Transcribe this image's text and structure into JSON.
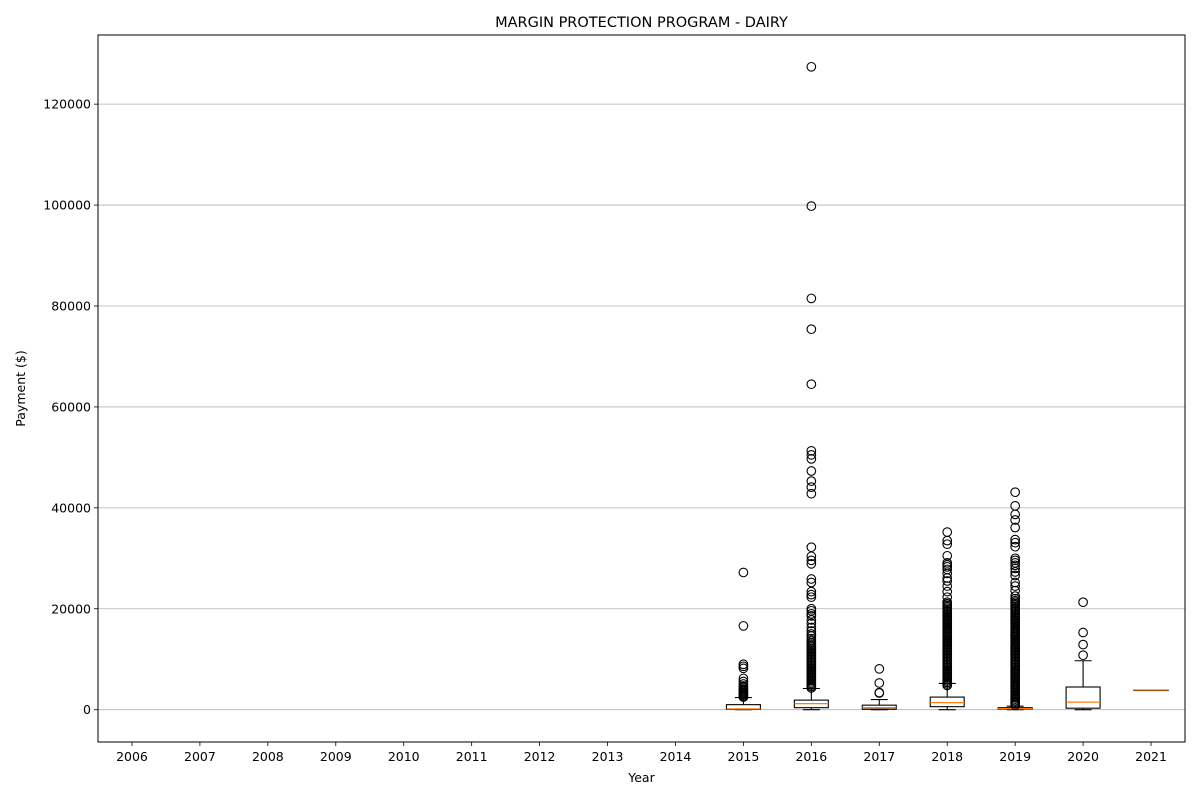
{
  "chart_data": {
    "type": "box",
    "title": "MARGIN PROTECTION PROGRAM - DAIRY",
    "xlabel": "Year",
    "ylabel": "Payment ($)",
    "categories": [
      "2006",
      "2007",
      "2008",
      "2009",
      "2010",
      "2011",
      "2012",
      "2013",
      "2014",
      "2015",
      "2016",
      "2017",
      "2018",
      "2019",
      "2020",
      "2021"
    ],
    "ylim": [
      -6400,
      133700
    ],
    "yticks": [
      0,
      20000,
      40000,
      60000,
      80000,
      100000,
      120000
    ],
    "ytick_labels": [
      "0",
      "20000",
      "40000",
      "60000",
      "80000",
      "100000",
      "120000"
    ],
    "grid": "y",
    "colors": {
      "median": "#ff7f0e",
      "box": "#000000",
      "grid": "#b0b0b0"
    },
    "boxes": [
      {
        "category": "2015",
        "whisker_low": 0,
        "q1": 50,
        "median": 150,
        "q3": 1000,
        "whisker_high": 2400,
        "outliers": [
          2500,
          2700,
          2900,
          3100,
          3300,
          3500,
          3700,
          3900,
          4100,
          4400,
          4700,
          5100,
          5600,
          6200,
          8200,
          8600,
          9000,
          16600,
          27200
        ]
      },
      {
        "category": "2016",
        "whisker_low": 0,
        "q1": 400,
        "median": 1200,
        "q3": 1900,
        "whisker_high": 4200,
        "outliers": [
          4300,
          4600,
          4900,
          5200,
          5500,
          5800,
          6100,
          6400,
          6700,
          7000,
          7300,
          7600,
          7900,
          8200,
          8500,
          8800,
          9100,
          9400,
          9700,
          10000,
          10300,
          10600,
          10900,
          11200,
          11500,
          11800,
          12100,
          12400,
          12700,
          13000,
          13300,
          13700,
          14100,
          14600,
          15000,
          15600,
          16300,
          17100,
          17800,
          18600,
          19000,
          19600,
          20000,
          22300,
          22800,
          23400,
          25200,
          25900,
          28900,
          29600,
          30400,
          32200,
          42800,
          44100,
          45300,
          47300,
          49700,
          50500,
          51300,
          64500,
          75400,
          81500,
          99800,
          127400
        ]
      },
      {
        "category": "2017",
        "whisker_low": 0,
        "q1": 100,
        "median": 400,
        "q3": 900,
        "whisker_high": 2000,
        "outliers": [
          3300,
          3400,
          5300,
          8100
        ]
      },
      {
        "category": "2018",
        "whisker_low": 0,
        "q1": 600,
        "median": 1400,
        "q3": 2500,
        "whisker_high": 5200,
        "outliers": [
          4800,
          5100,
          5400,
          5700,
          6000,
          6300,
          6600,
          6900,
          7200,
          7500,
          7800,
          8100,
          8400,
          8700,
          9000,
          9300,
          9600,
          9900,
          10200,
          10500,
          10800,
          11100,
          11400,
          11700,
          12000,
          12300,
          12600,
          12900,
          13200,
          13500,
          13800,
          14100,
          14400,
          14700,
          15000,
          15300,
          15600,
          15900,
          16200,
          16500,
          16800,
          17100,
          17400,
          17700,
          18000,
          18300,
          18600,
          18900,
          19200,
          19500,
          19800,
          20100,
          20400,
          20700,
          21000,
          21300,
          22300,
          23400,
          24500,
          25500,
          26100,
          27000,
          27800,
          28300,
          28700,
          29100,
          30500,
          32800,
          33500,
          35200
        ]
      },
      {
        "category": "2019",
        "whisker_low": 0,
        "q1": 100,
        "median": 200,
        "q3": 400,
        "whisker_high": 700,
        "outliers": [
          900,
          1200,
          1500,
          1800,
          2100,
          2400,
          2700,
          3000,
          3300,
          3600,
          3900,
          4200,
          4500,
          4800,
          5100,
          5400,
          5700,
          6000,
          6300,
          6600,
          6900,
          7200,
          7500,
          7800,
          8100,
          8400,
          8700,
          9000,
          9300,
          9600,
          9900,
          10200,
          10500,
          10800,
          11100,
          11400,
          11700,
          12000,
          12300,
          12600,
          12900,
          13200,
          13500,
          13800,
          14100,
          14400,
          14700,
          15000,
          15300,
          15600,
          15900,
          16200,
          16500,
          16800,
          17100,
          17400,
          17700,
          18000,
          18300,
          18600,
          18900,
          19200,
          19500,
          19800,
          20100,
          20400,
          20700,
          21000,
          21300,
          21600,
          22000,
          22500,
          23600,
          24500,
          25200,
          26600,
          27300,
          28000,
          28600,
          29100,
          29600,
          30000,
          32300,
          33100,
          33700,
          36100,
          37600,
          38700,
          40400,
          43100
        ]
      },
      {
        "category": "2020",
        "whisker_low": 0,
        "q1": 300,
        "median": 1500,
        "q3": 4500,
        "whisker_high": 9700,
        "outliers": [
          10800,
          12900,
          15300,
          21300
        ]
      },
      {
        "category": "2021",
        "whisker_low": 3900,
        "q1": 3900,
        "median": 3900,
        "q3": 3900,
        "whisker_high": 3900,
        "outliers": []
      }
    ]
  }
}
